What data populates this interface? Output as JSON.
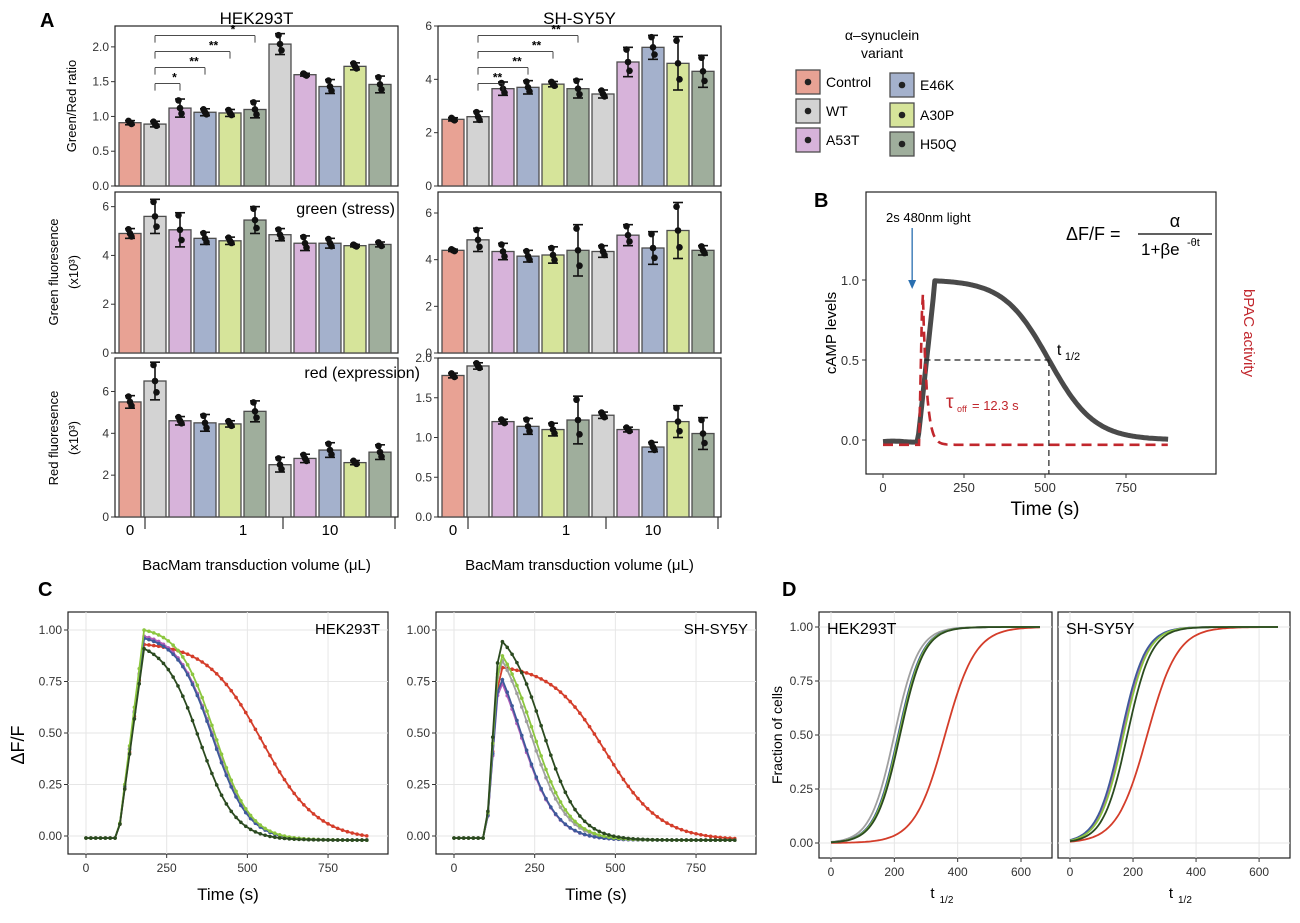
{
  "colors": {
    "Control": "#e8a294",
    "WT": "#d3d3d3",
    "A53T": "#d7b3da",
    "E46K": "#a4b1cc",
    "A30P": "#d6e49a",
    "H50Q": "#9fae9c",
    "bar_outline": "#4d4d4d",
    "curve_Control": "#d43d2a",
    "curve_WT": "#a0a0a0",
    "curve_A53T": "#b05cb8",
    "curve_E46K": "#3e5a9a",
    "curve_A30P": "#8cc63f",
    "curve_H50Q": "#2b4a20",
    "bpac": "#c1272d",
    "camp": "#4a4a4a",
    "arrow": "#2a6fb0",
    "grid": "#e6e6e6"
  },
  "labels": {
    "panel_A": "A",
    "panel_B": "B",
    "panel_C": "C",
    "panel_D": "D"
  },
  "panel_a": {
    "legend": {
      "title_line1": "α–synuclein",
      "title_line2": "variant",
      "entries": [
        "Control",
        "WT",
        "A53T",
        "E46K",
        "A30P",
        "H50Q"
      ]
    },
    "xlabel": "BacMam transduction volume (μL)",
    "x_groups": [
      "0",
      "1",
      "10"
    ],
    "ylabels": {
      "ratio": "Green/Red ratio",
      "green_line1": "Green fluoresence",
      "green_line2": "(x10³)",
      "red_line1": "Red fluoresence",
      "red_line2": "(x10³)"
    },
    "annotations": {
      "green": "green (stress)",
      "red": "red (expression)"
    },
    "bar_variants": [
      "Control",
      "WT",
      "A53T",
      "E46K",
      "A30P",
      "H50Q",
      "WT",
      "A53T",
      "E46K",
      "A30P",
      "H50Q"
    ],
    "hek": {
      "title": "HEK293T",
      "ratio": {
        "ylim": [
          0,
          2.3
        ],
        "ticks": [
          "0.0",
          "0.5",
          "1.0",
          "1.5",
          "2.0"
        ],
        "tickvals": [
          0,
          0.5,
          1,
          1.5,
          2
        ],
        "values": [
          0.91,
          0.89,
          1.12,
          1.06,
          1.05,
          1.1,
          2.04,
          1.6,
          1.43,
          1.72,
          1.46
        ],
        "err": [
          0.03,
          0.04,
          0.13,
          0.05,
          0.05,
          0.12,
          0.15,
          0.02,
          0.1,
          0.05,
          0.12
        ],
        "sig": [
          {
            "from": 1,
            "to": 2,
            "label": "*"
          },
          {
            "from": 1,
            "to": 3,
            "label": "**"
          },
          {
            "from": 1,
            "to": 4,
            "label": "**"
          },
          {
            "from": 1,
            "to": 5,
            "label": "*"
          }
        ]
      },
      "green": {
        "ylim": [
          0,
          6.6
        ],
        "ticks": [
          "0",
          "2",
          "4",
          "6"
        ],
        "tickvals": [
          0,
          2,
          4,
          6
        ],
        "values": [
          4.9,
          5.6,
          5.05,
          4.7,
          4.6,
          5.45,
          4.85,
          4.5,
          4.5,
          4.4,
          4.45
        ],
        "err": [
          0.2,
          0.7,
          0.7,
          0.25,
          0.15,
          0.55,
          0.25,
          0.3,
          0.2,
          0.05,
          0.1
        ]
      },
      "red": {
        "ylim": [
          0,
          7.6
        ],
        "ticks": [
          "0",
          "2",
          "4",
          "6"
        ],
        "tickvals": [
          0,
          2,
          4,
          6
        ],
        "values": [
          5.5,
          6.5,
          4.6,
          4.5,
          4.45,
          5.05,
          2.5,
          2.8,
          3.2,
          2.6,
          3.1
        ],
        "err": [
          0.3,
          0.9,
          0.2,
          0.4,
          0.15,
          0.5,
          0.35,
          0.2,
          0.35,
          0.1,
          0.35
        ]
      }
    },
    "sh": {
      "title": "SH-SY5Y",
      "ratio": {
        "ylim": [
          0,
          6
        ],
        "ticks": [
          "0",
          "2",
          "4",
          "6"
        ],
        "tickvals": [
          0,
          2,
          4,
          6
        ],
        "values": [
          2.5,
          2.6,
          3.65,
          3.7,
          3.82,
          3.65,
          3.45,
          4.65,
          5.2,
          4.6,
          4.3
        ],
        "err": [
          0.06,
          0.2,
          0.25,
          0.25,
          0.1,
          0.35,
          0.15,
          0.55,
          0.45,
          1.0,
          0.6
        ],
        "sig": [
          {
            "from": 1,
            "to": 2,
            "label": "**"
          },
          {
            "from": 1,
            "to": 3,
            "label": "**"
          },
          {
            "from": 1,
            "to": 4,
            "label": "**"
          },
          {
            "from": 1,
            "to": 5,
            "label": "**"
          }
        ]
      },
      "green": {
        "ylim": [
          0,
          6.9
        ],
        "ticks": [
          "0",
          "2",
          "4",
          "6"
        ],
        "tickvals": [
          0,
          2,
          4,
          6
        ],
        "values": [
          4.4,
          4.85,
          4.35,
          4.15,
          4.2,
          4.4,
          4.35,
          5.05,
          4.5,
          5.25,
          4.4
        ],
        "err": [
          0.05,
          0.5,
          0.35,
          0.25,
          0.35,
          1.1,
          0.25,
          0.45,
          0.7,
          1.2,
          0.2
        ]
      },
      "red": {
        "ylim": [
          0,
          2.0
        ],
        "ticks": [
          "0.0",
          "0.5",
          "1.0",
          "1.5",
          "2.0"
        ],
        "tickvals": [
          0,
          0.5,
          1,
          1.5,
          2
        ],
        "values": [
          1.78,
          1.9,
          1.2,
          1.14,
          1.1,
          1.22,
          1.28,
          1.1,
          0.88,
          1.2,
          1.05
        ],
        "err": [
          0.03,
          0.04,
          0.03,
          0.1,
          0.08,
          0.3,
          0.04,
          0.03,
          0.06,
          0.2,
          0.2
        ]
      }
    }
  },
  "panel_b": {
    "ylabel": "cAMP levels",
    "xlabel": "Time (s)",
    "right_label": "bPAC activity",
    "arrow_label": "2s 480nm light",
    "formula": {
      "lhs": "ΔF/F =",
      "num": "α",
      "den": "1+βe",
      "den_exp": "-θt"
    },
    "tau_label": "τ",
    "tau_sub": "off",
    "tau_value": "= 12.3 s",
    "t_label": "t",
    "t_sub": "1/2",
    "xticks": [
      "0",
      "250",
      "500",
      "750"
    ],
    "xtickvals": [
      0,
      250,
      500,
      750
    ],
    "yticks": [
      "0.0",
      "0.5",
      "1.0"
    ],
    "ytickvals": [
      0,
      0.5,
      1
    ],
    "t_half": 512,
    "light_time": 90
  },
  "panel_c": {
    "ylabel": "ΔF/F",
    "xlabel": "Time (s)",
    "xticks": [
      "0",
      "250",
      "500",
      "750"
    ],
    "xtickvals": [
      0,
      250,
      500,
      750
    ],
    "yticks": [
      "0.00",
      "0.25",
      "0.50",
      "0.75",
      "1.00"
    ],
    "ytickvals": [
      0,
      0.25,
      0.5,
      0.75,
      1
    ],
    "hek": {
      "label": "HEK293T",
      "peaks": {
        "Control": 0.93,
        "WT": 0.96,
        "A53T": 0.97,
        "E46K": 0.96,
        "A30P": 1.0,
        "H50Q": 0.91
      },
      "half_times": {
        "Control": 545,
        "WT": 395,
        "A53T": 392,
        "E46K": 392,
        "A30P": 398,
        "H50Q": 352
      }
    },
    "sh": {
      "label": "SH-SY5Y",
      "peaks": {
        "Control": 0.82,
        "WT": 0.88,
        "A53T": 0.78,
        "E46K": 0.8,
        "A30P": 0.9,
        "H50Q": 0.96
      },
      "half_times": {
        "Control": 470,
        "WT": 235,
        "A53T": 205,
        "E46K": 205,
        "A30P": 245,
        "H50Q": 275
      }
    }
  },
  "panel_d": {
    "ylabel": "Fraction of cells",
    "xlabel": "t",
    "xlabel_sub": "1/2",
    "xticks": [
      "0",
      "200",
      "400",
      "600"
    ],
    "xtickvals": [
      0,
      200,
      400,
      600
    ],
    "yticks": [
      "0.00",
      "0.25",
      "0.50",
      "0.75",
      "1.00"
    ],
    "ytickvals": [
      0,
      0.25,
      0.5,
      0.75,
      1
    ],
    "hek": {
      "label": "HEK293T",
      "medians": {
        "Control": 360,
        "WT": 200,
        "A53T": 215,
        "E46K": 212,
        "A30P": 215,
        "H50Q": 218
      }
    },
    "sh": {
      "label": "SH-SY5Y",
      "medians": {
        "Control": 245,
        "WT": 168,
        "A53T": 165,
        "E46K": 162,
        "A30P": 170,
        "H50Q": 182
      }
    }
  }
}
